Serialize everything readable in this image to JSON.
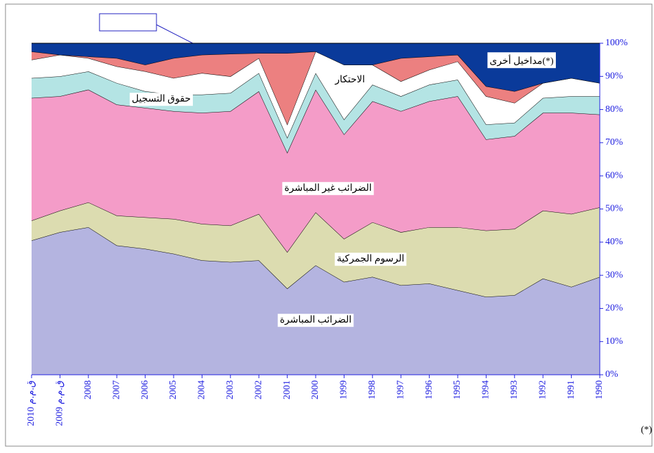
{
  "chart_data": {
    "type": "stacked_area",
    "categories": [
      "2010 ق.م.م",
      "2009 ق.م.م",
      "2008",
      "2007",
      "2006",
      "2005",
      "2004",
      "2003",
      "2002",
      "2001",
      "2000",
      "1999",
      "1998",
      "1997",
      "1996",
      "1995",
      "1994",
      "1993",
      "1992",
      "1991",
      "1990"
    ],
    "series": [
      {
        "name": "الضرائب المباشرة",
        "color": "#b4b4e0",
        "values": [
          40.5,
          43,
          44.5,
          39,
          38,
          36.5,
          34.5,
          34,
          34.5,
          26,
          33,
          28,
          29.5,
          27,
          27.5,
          25.5,
          23.5,
          24,
          29,
          26.5,
          29.5
        ]
      },
      {
        "name": "الرسوم الجمركية",
        "color": "#dcdcb0",
        "values": [
          6,
          6.5,
          7.5,
          9,
          9.5,
          10.5,
          11,
          11,
          14,
          11,
          16,
          13,
          16.5,
          16,
          17,
          19,
          20,
          20,
          20.5,
          22,
          21
        ]
      },
      {
        "name": "الضرائب غير المباشرة",
        "color": "#f49cc8",
        "values": [
          37,
          34.5,
          34,
          33.5,
          33,
          32.5,
          33.5,
          34.5,
          37,
          30,
          37,
          31.5,
          36.5,
          36.5,
          38,
          39.5,
          27.5,
          28,
          29.5,
          30.5,
          28
        ]
      },
      {
        "name": "حقوق التسجيل",
        "color": "#b4e4e4",
        "values": [
          6,
          6,
          5.5,
          6.5,
          5,
          5,
          5.5,
          5.5,
          5.5,
          4.5,
          5,
          4.5,
          5,
          4.5,
          5,
          5,
          4.5,
          4,
          4.5,
          5,
          5.5
        ]
      },
      {
        "name": "الاحتكار",
        "color": "#ffffff",
        "values": [
          5.5,
          6.5,
          4,
          5,
          6,
          5,
          6.5,
          5,
          4.5,
          4,
          6.5,
          16.5,
          6,
          4.5,
          4.5,
          5.5,
          8.5,
          6,
          4.5,
          5.5,
          4
        ]
      },
      {
        "color": "#ec8080",
        "values": [
          2.5,
          0,
          0.5,
          2.5,
          2,
          6,
          5.5,
          6.8,
          1.5,
          21.5,
          0,
          0,
          0,
          7,
          4,
          2,
          3,
          3.5,
          0,
          0,
          0
        ]
      },
      {
        "name": "مداخيل أخرى(*)",
        "color": "#0a3a9a",
        "values": [
          2.5,
          3.5,
          4,
          4.5,
          6.5,
          4.5,
          3.5,
          3.2,
          3,
          3,
          2.5,
          6.5,
          6.5,
          4.5,
          4,
          3.5,
          13,
          14.5,
          12,
          10.5,
          12
        ]
      }
    ],
    "ylim": [
      0,
      100
    ],
    "yticks": [
      {
        "value": 0,
        "label": "0%"
      },
      {
        "value": 10,
        "label": "10%"
      },
      {
        "value": 20,
        "label": "20%"
      },
      {
        "value": 30,
        "label": "30%"
      },
      {
        "value": 40,
        "label": "40%"
      },
      {
        "value": 50,
        "label": "50%"
      },
      {
        "value": 60,
        "label": "60%"
      },
      {
        "value": 70,
        "label": "70%"
      },
      {
        "value": 80,
        "label": "80%"
      },
      {
        "value": 90,
        "label": "90%"
      },
      {
        "value": 100,
        "label": "100%"
      }
    ],
    "footnote": "(*)"
  }
}
